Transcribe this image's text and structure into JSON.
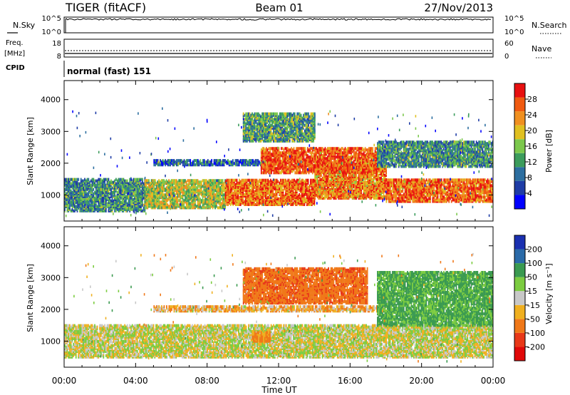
{
  "header": {
    "radar": "TIGER (fitACF)",
    "beam": "Beam 01",
    "date": "27/Nov/2013"
  },
  "noise_panel": {
    "left_label": "N.Sky",
    "right_label": "N.Search",
    "left_ticks": [
      "10^5",
      "10^0"
    ],
    "right_ticks": [
      "10^5",
      "10^0"
    ]
  },
  "freq_panel": {
    "left_label_1": "Freq.",
    "left_label_2": "[MHz]",
    "right_label": "Nave",
    "left_ticks": [
      "18",
      "8"
    ],
    "right_ticks": [
      "60",
      "0"
    ]
  },
  "cpid_panel": {
    "label": "CPID",
    "text": "normal (fast) 151"
  },
  "chart_data": [
    {
      "type": "heatmap",
      "name": "power",
      "ylabel": "Slant Range [km]",
      "xlabel": "Time UT",
      "x_ticks": [
        "00:00",
        "04:00",
        "08:00",
        "12:00",
        "16:00",
        "20:00",
        "00:00"
      ],
      "x_range_hours": [
        0,
        24
      ],
      "y_ticks": [
        1000,
        2000,
        3000,
        4000
      ],
      "ylim": [
        180,
        4600
      ],
      "colorbar": {
        "label": "Power [dB]",
        "ticks": [
          4,
          8,
          12,
          16,
          20,
          24,
          28
        ],
        "range": [
          0,
          32
        ],
        "colors": [
          "#0000ff",
          "#1e3ca6",
          "#2c6ea0",
          "#3c9c5c",
          "#7cc84c",
          "#e0c020",
          "#f09020",
          "#f05a10",
          "#e81010"
        ]
      },
      "bands": [
        {
          "t0": 0.0,
          "t1": 4.5,
          "r0": 500,
          "r1": 1500,
          "level": 0.35
        },
        {
          "t0": 4.5,
          "t1": 9.0,
          "r0": 600,
          "r1": 1500,
          "level": 0.55
        },
        {
          "t0": 9.0,
          "t1": 14.0,
          "r0": 700,
          "r1": 1500,
          "level": 0.8
        },
        {
          "t0": 14.0,
          "t1": 18.0,
          "r0": 900,
          "r1": 2000,
          "level": 0.75
        },
        {
          "t0": 18.0,
          "t1": 24.0,
          "r0": 800,
          "r1": 1500,
          "level": 0.8
        },
        {
          "t0": 5.0,
          "t1": 11.0,
          "r0": 1950,
          "r1": 2100,
          "level": 0.25
        },
        {
          "t0": 11.0,
          "t1": 17.5,
          "r0": 1700,
          "r1": 2500,
          "level": 0.85
        },
        {
          "t0": 17.5,
          "t1": 24.0,
          "r0": 1900,
          "r1": 2700,
          "level": 0.35
        },
        {
          "t0": 10.0,
          "t1": 14.0,
          "r0": 2700,
          "r1": 3600,
          "level": 0.4
        }
      ]
    },
    {
      "type": "heatmap",
      "name": "velocity",
      "ylabel": "Slant Range [km]",
      "xlabel": "Time UT",
      "x_ticks": [
        "00:00",
        "04:00",
        "08:00",
        "12:00",
        "16:00",
        "20:00",
        "00:00"
      ],
      "x_range_hours": [
        0,
        24
      ],
      "y_ticks": [
        1000,
        2000,
        3000,
        4000
      ],
      "ylim": [
        180,
        4600
      ],
      "colorbar": {
        "label": "Velocity [m s⁻¹]",
        "ticks": [
          "200",
          "100",
          "50",
          "15",
          "-15",
          "-50",
          "-100",
          "-200"
        ],
        "colors": [
          "#1a30b0",
          "#2a6aa8",
          "#3a9a50",
          "#7ccc40",
          "#c8c8c8",
          "#f0b020",
          "#f07818",
          "#e83818",
          "#e00808"
        ]
      },
      "bands": [
        {
          "t0": 0.0,
          "t1": 24.0,
          "r0": 500,
          "r1": 1500,
          "velocity": 0
        },
        {
          "t0": 10.5,
          "t1": 11.5,
          "r0": 1000,
          "r1": 1300,
          "velocity": -40
        },
        {
          "t0": 5.0,
          "t1": 18.0,
          "r0": 1950,
          "r1": 2100,
          "velocity": -20
        },
        {
          "t0": 10.0,
          "t1": 17.0,
          "r0": 2200,
          "r1": 3300,
          "velocity": -60
        },
        {
          "t0": 17.5,
          "t1": 24.0,
          "r0": 1500,
          "r1": 3200,
          "velocity": 40
        }
      ]
    }
  ]
}
